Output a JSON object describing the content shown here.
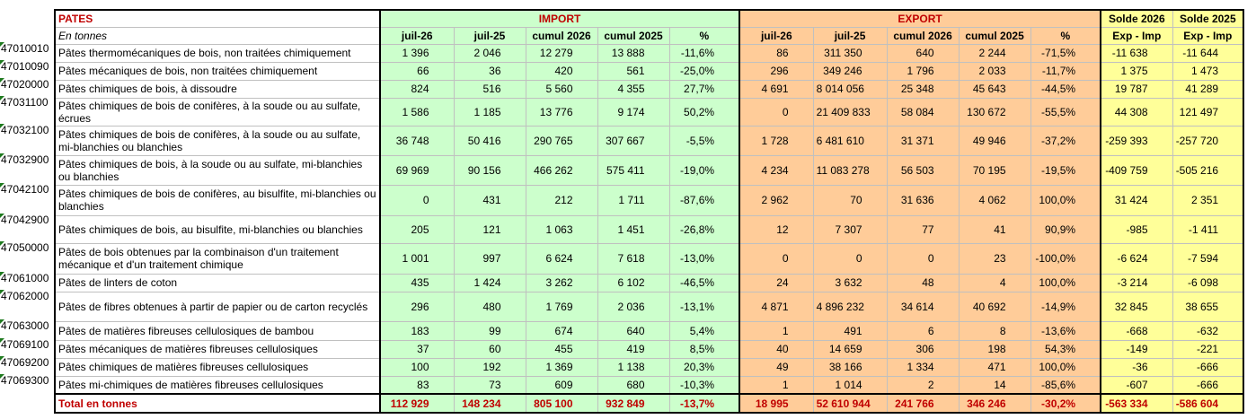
{
  "title": "PATES",
  "unit_label": "En tonnes",
  "groups": {
    "import": "IMPORT",
    "export": "EXPORT",
    "solde2026": "Solde 2026",
    "solde2025": "Solde 2025"
  },
  "subheaders": {
    "imp": [
      "juil-26",
      "juil-25",
      "cumul 2026",
      "cumul 2025",
      "%"
    ],
    "exp": [
      "juil-26",
      "juil-25",
      "cumul 2026",
      "cumul 2025",
      "%"
    ],
    "s26": "Exp - Imp",
    "s25": "Exp - Imp"
  },
  "colors": {
    "import": "#ccffcc",
    "export": "#ffcc99",
    "solde": "#ffff99",
    "title_red": "#c00000",
    "flag_green": "#1e7a1e"
  },
  "rows": [
    {
      "code": "47010010",
      "label": "Pâtes thermomécaniques de bois, non traitées chimiquement",
      "imp": [
        "1 396",
        "2 046",
        "12 279",
        "13 888",
        "-11,6%"
      ],
      "exp": [
        "86",
        "311 350",
        "640",
        "2 244",
        "-71,5%"
      ],
      "s26": "-11 638",
      "s25": "-11 644"
    },
    {
      "code": "47010090",
      "label": "Pâtes mécaniques de bois, non traitées chimiquement",
      "imp": [
        "66",
        "36",
        "420",
        "561",
        "-25,0%"
      ],
      "exp": [
        "296",
        "349 246",
        "1 796",
        "2 033",
        "-11,7%"
      ],
      "s26": "1 375",
      "s25": "1 473"
    },
    {
      "code": "47020000",
      "label": "Pâtes chimiques de bois, à dissoudre",
      "imp": [
        "824",
        "516",
        "5 560",
        "4 355",
        "27,7%"
      ],
      "exp": [
        "4 691",
        "8 014 056",
        "25 348",
        "45 643",
        "-44,5%"
      ],
      "s26": "19 787",
      "s25": "41 289"
    },
    {
      "code": "47031100",
      "label": "Pâtes chimiques de bois de conifères, à la soude ou au sulfate, écrues",
      "imp": [
        "1 586",
        "1 185",
        "13 776",
        "9 174",
        "50,2%"
      ],
      "exp": [
        "0",
        "21 409 833",
        "58 084",
        "130 672",
        "-55,5%"
      ],
      "s26": "44 308",
      "s25": "121 497"
    },
    {
      "code": "47032100",
      "label": "Pâtes chimiques de bois de conifères, à la soude ou au sulfate, mi-blanchies ou blanchies",
      "imp": [
        "36 748",
        "50 416",
        "290 765",
        "307 667",
        "-5,5%"
      ],
      "exp": [
        "1 728",
        "6 481 610",
        "31 371",
        "49 946",
        "-37,2%"
      ],
      "s26": "-259 393",
      "s25": "-257 720"
    },
    {
      "code": "47032900",
      "label": "Pâtes chimiques de bois, à la soude ou au sulfate, mi-blanchies ou blanchies",
      "imp": [
        "69 969",
        "90 156",
        "466 262",
        "575 411",
        "-19,0%"
      ],
      "exp": [
        "4 234",
        "11 083 278",
        "56 503",
        "70 195",
        "-19,5%"
      ],
      "s26": "-409 759",
      "s25": "-505 216"
    },
    {
      "code": "47042100",
      "label": "Pâtes chimiques de bois de conifères, au bisulfite, mi-blanchies ou blanchies",
      "imp": [
        "0",
        "431",
        "212",
        "1 711",
        "-87,6%"
      ],
      "exp": [
        "2 962",
        "70",
        "31 636",
        "4 062",
        "100,0%"
      ],
      "s26": "31 424",
      "s25": "2 351"
    },
    {
      "code": "47042900",
      "label": "Pâtes chimiques de bois, au bisulfite, mi-blanchies ou blanchies",
      "imp": [
        "205",
        "121",
        "1 063",
        "1 451",
        "-26,8%"
      ],
      "exp": [
        "12",
        "7 307",
        "77",
        "41",
        "90,9%"
      ],
      "s26": "-985",
      "s25": "-1 411"
    },
    {
      "code": "47050000",
      "label": "Pâtes de bois obtenues par la combinaison d'un traitement mécanique et d'un traitement chimique",
      "imp": [
        "1 001",
        "997",
        "6 624",
        "7 618",
        "-13,0%"
      ],
      "exp": [
        "0",
        "0",
        "0",
        "23",
        "-100,0%"
      ],
      "s26": "-6 624",
      "s25": "-7 594"
    },
    {
      "code": "47061000",
      "label": "Pâtes de linters de coton",
      "imp": [
        "435",
        "1 424",
        "3 262",
        "6 102",
        "-46,5%"
      ],
      "exp": [
        "24",
        "3 632",
        "48",
        "4",
        "100,0%"
      ],
      "s26": "-3 214",
      "s25": "-6 098"
    },
    {
      "code": "47062000",
      "label": "Pâtes de fibres obtenues à partir de papier ou de carton recyclés",
      "imp": [
        "296",
        "480",
        "1 769",
        "2 036",
        "-13,1%"
      ],
      "exp": [
        "4 871",
        "4 896 232",
        "34 614",
        "40 692",
        "-14,9%"
      ],
      "s26": "32 845",
      "s25": "38 655"
    },
    {
      "code": "47063000",
      "label": "Pâtes de matières fibreuses cellulosiques de bambou",
      "imp": [
        "183",
        "99",
        "674",
        "640",
        "5,4%"
      ],
      "exp": [
        "1",
        "491",
        "6",
        "8",
        "-13,6%"
      ],
      "s26": "-668",
      "s25": "-632"
    },
    {
      "code": "47069100",
      "label": "Pâtes mécaniques de matières fibreuses cellulosiques",
      "imp": [
        "37",
        "60",
        "455",
        "419",
        "8,5%"
      ],
      "exp": [
        "40",
        "14 659",
        "306",
        "198",
        "54,3%"
      ],
      "s26": "-149",
      "s25": "-221"
    },
    {
      "code": "47069200",
      "label": "Pâtes chimiques de matières fibreuses cellulosiques",
      "imp": [
        "100",
        "192",
        "1 369",
        "1 138",
        "20,3%"
      ],
      "exp": [
        "49",
        "38 166",
        "1 334",
        "471",
        "100,0%"
      ],
      "s26": "-36",
      "s25": "-666"
    },
    {
      "code": "47069300",
      "label": "Pâtes mi-chimiques de matières fibreuses cellulosiques",
      "imp": [
        "83",
        "73",
        "609",
        "680",
        "-10,3%"
      ],
      "exp": [
        "1",
        "1 014",
        "2",
        "14",
        "-85,6%"
      ],
      "s26": "-607",
      "s25": "-666"
    }
  ],
  "total": {
    "label": "Total en tonnes",
    "imp": [
      "112 929",
      "148 234",
      "805 100",
      "932 849",
      "-13,7%"
    ],
    "exp": [
      "18 995",
      "52 610 944",
      "241 766",
      "346 246",
      "-30,2%"
    ],
    "s26": "-563 334",
    "s25": "-586 604"
  }
}
